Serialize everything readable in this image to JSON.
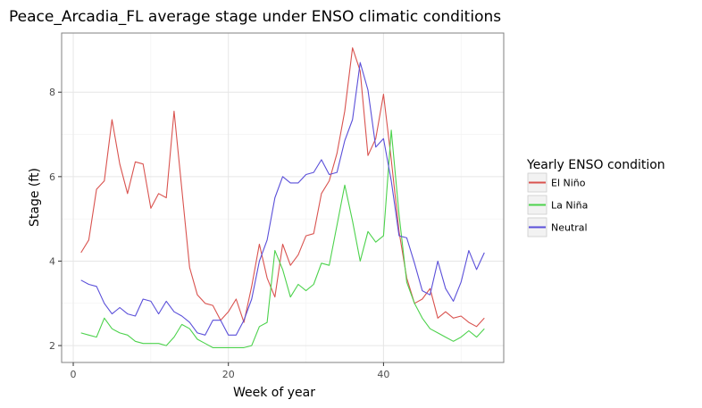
{
  "chart_data": {
    "type": "line",
    "title": "Peace_Arcadia_FL average stage under ENSO climatic conditions",
    "xlabel": "Week of year",
    "ylabel": "Stage (ft)",
    "xlim": [
      -1.5,
      55.5
    ],
    "ylim": [
      1.6,
      9.4
    ],
    "x_ticks": [
      0,
      20,
      40
    ],
    "y_ticks": [
      2,
      4,
      6,
      8
    ],
    "grid": true,
    "legend": {
      "title": "Yearly ENSO condition",
      "position": "right"
    },
    "x": [
      1,
      2,
      3,
      4,
      5,
      6,
      7,
      8,
      9,
      10,
      11,
      12,
      13,
      14,
      15,
      16,
      17,
      18,
      19,
      20,
      21,
      22,
      23,
      24,
      25,
      26,
      27,
      28,
      29,
      30,
      31,
      32,
      33,
      34,
      35,
      36,
      37,
      38,
      39,
      40,
      41,
      42,
      43,
      44,
      45,
      46,
      47,
      48,
      49,
      50,
      51,
      52,
      53
    ],
    "series": [
      {
        "name": "El Niño",
        "color": "#d9534f",
        "values": [
          4.2,
          4.5,
          5.7,
          5.9,
          7.35,
          6.3,
          5.6,
          6.35,
          6.3,
          5.25,
          5.6,
          5.5,
          7.55,
          5.7,
          3.85,
          3.2,
          3.0,
          2.95,
          2.6,
          2.8,
          3.1,
          2.55,
          3.4,
          4.4,
          3.6,
          3.15,
          4.4,
          3.9,
          4.15,
          4.6,
          4.65,
          5.6,
          5.9,
          6.55,
          7.55,
          9.05,
          8.5,
          6.5,
          6.9,
          7.95,
          6.4,
          4.7,
          3.6,
          3.0,
          3.1,
          3.35,
          2.65,
          2.8,
          2.65,
          2.7,
          2.55,
          2.45,
          2.65
        ]
      },
      {
        "name": "La Niña",
        "color": "#4cd24c",
        "values": [
          2.3,
          2.25,
          2.2,
          2.65,
          2.4,
          2.3,
          2.25,
          2.1,
          2.05,
          2.05,
          2.05,
          2.0,
          2.2,
          2.5,
          2.4,
          2.15,
          2.05,
          1.95,
          1.95,
          1.95,
          1.95,
          1.95,
          2.0,
          2.45,
          2.55,
          4.25,
          3.8,
          3.15,
          3.45,
          3.3,
          3.45,
          3.95,
          3.9,
          4.85,
          5.8,
          4.95,
          4.0,
          4.7,
          4.45,
          4.6,
          7.1,
          5.1,
          3.5,
          3.0,
          2.65,
          2.4,
          2.3,
          2.2,
          2.1,
          2.2,
          2.35,
          2.2,
          2.4
        ]
      },
      {
        "name": "Neutral",
        "color": "#5a4fd9",
        "values": [
          3.55,
          3.45,
          3.4,
          3.0,
          2.75,
          2.9,
          2.75,
          2.7,
          3.1,
          3.05,
          2.75,
          3.05,
          2.8,
          2.7,
          2.55,
          2.3,
          2.25,
          2.6,
          2.6,
          2.25,
          2.25,
          2.6,
          3.1,
          4.0,
          4.5,
          5.5,
          6.0,
          5.85,
          5.85,
          6.05,
          6.1,
          6.4,
          6.05,
          6.1,
          6.85,
          7.35,
          8.7,
          8.05,
          6.7,
          6.9,
          5.9,
          4.6,
          4.55,
          3.95,
          3.3,
          3.2,
          4.0,
          3.35,
          3.05,
          3.5,
          4.25,
          3.8,
          4.2
        ]
      }
    ]
  }
}
